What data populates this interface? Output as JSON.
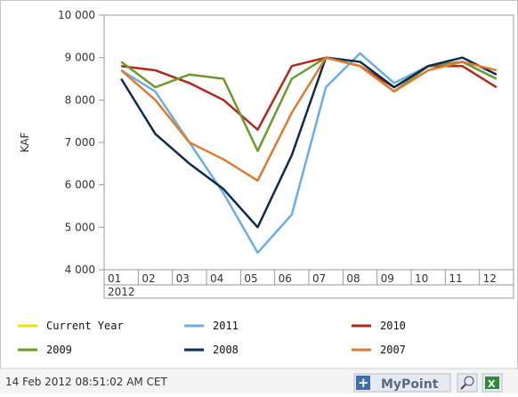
{
  "chart_data": {
    "type": "line",
    "y_label": "KAF",
    "categories": [
      "01",
      "02",
      "03",
      "04",
      "05",
      "06",
      "07",
      "08",
      "09",
      "10",
      "11",
      "12"
    ],
    "year_label": "2012",
    "ylim": [
      4000,
      10000
    ],
    "yticks": [
      {
        "value": 4000,
        "label": "4 000"
      },
      {
        "value": 5000,
        "label": "5 000"
      },
      {
        "value": 6000,
        "label": "6 000"
      },
      {
        "value": 7000,
        "label": "7 000"
      },
      {
        "value": 8000,
        "label": "8 000"
      },
      {
        "value": 9000,
        "label": "9 000"
      },
      {
        "value": 10000,
        "label": "10 000"
      }
    ],
    "series": [
      {
        "name": "Current Year",
        "color": "#f2e000",
        "values": [
          null,
          null,
          null,
          null,
          null,
          null,
          null,
          null,
          null,
          null,
          null,
          null
        ]
      },
      {
        "name": "2011",
        "color": "#6aaee8",
        "values": [
          8700,
          8200,
          7000,
          5800,
          4400,
          5300,
          8300,
          9100,
          8400,
          8800,
          8900,
          8500
        ]
      },
      {
        "name": "2010",
        "color": "#b5261e",
        "values": [
          8800,
          8700,
          8400,
          8000,
          7300,
          8800,
          9000,
          8800,
          8300,
          8800,
          8800,
          8300
        ]
      },
      {
        "name": "2009",
        "color": "#6e9a2a",
        "values": [
          8900,
          8300,
          8600,
          8500,
          6800,
          8500,
          9000,
          8800,
          8200,
          8800,
          8900,
          8500
        ]
      },
      {
        "name": "2008",
        "color": "#102a4f",
        "values": [
          8500,
          7200,
          6500,
          5900,
          5000,
          6700,
          9000,
          8900,
          8300,
          8800,
          9000,
          8600
        ]
      },
      {
        "name": "2007",
        "color": "#e07a2e",
        "values": [
          8700,
          8000,
          7000,
          6600,
          6100,
          7700,
          9000,
          8800,
          8200,
          8700,
          8900,
          8700
        ]
      }
    ],
    "timestamp": "14 Feb 2012 08:51:02 AM CET",
    "button": "MyPoint"
  }
}
